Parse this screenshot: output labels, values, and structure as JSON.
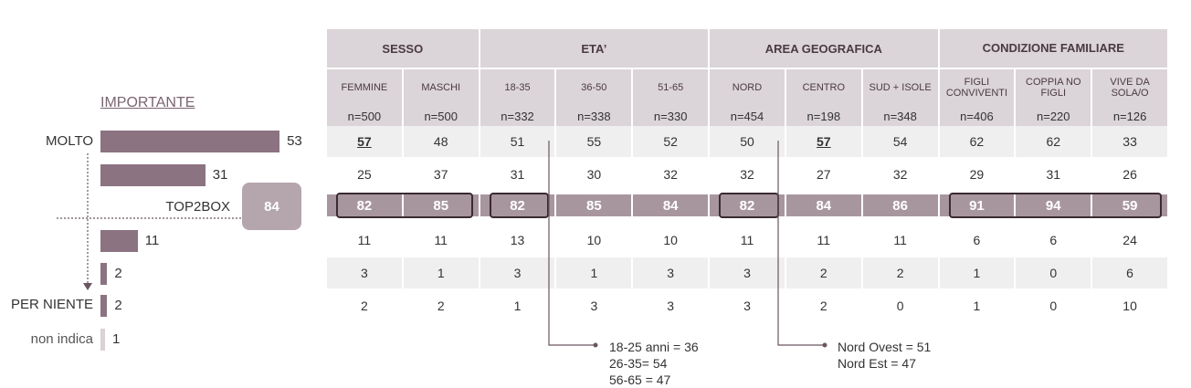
{
  "left_chart": {
    "title": "IMPORTANTE",
    "rows": [
      {
        "label": "MOLTO",
        "value": "53",
        "pct": 53
      },
      {
        "label": "",
        "value": "31",
        "pct": 31
      },
      {
        "label": "",
        "value": "11",
        "pct": 11
      },
      {
        "label": "",
        "value": "2",
        "pct": 2
      },
      {
        "label": "PER NIENTE",
        "value": "2",
        "pct": 2
      },
      {
        "label": "non indica",
        "value": "1",
        "pct": 1
      }
    ],
    "top2box_label": "TOP2BOX",
    "top2box_value": "84"
  },
  "table": {
    "groups": [
      "SESSO",
      "ETA’",
      "AREA GEOGRAFICA",
      "CONDIZIONE FAMILIARE"
    ],
    "columns": [
      "FEMMINE",
      "MASCHI",
      "18-35",
      "36-50",
      "51-65",
      "NORD",
      "CENTRO",
      "SUD + ISOLE",
      "FIGLI CONVIVENTI",
      "COPPIA NO FIGLI",
      "VIVE DA SOLA/O"
    ],
    "n": [
      "n=500",
      "n=500",
      "n=332",
      "n=338",
      "n=330",
      "n=454",
      "n=198",
      "n=348",
      "n=406",
      "n=220",
      "n=126"
    ],
    "rows": [
      [
        "57",
        "48",
        "51",
        "55",
        "52",
        "50",
        "57",
        "54",
        "62",
        "62",
        "33"
      ],
      [
        "25",
        "37",
        "31",
        "30",
        "32",
        "32",
        "27",
        "32",
        "29",
        "31",
        "26"
      ],
      [
        "82",
        "85",
        "82",
        "85",
        "84",
        "82",
        "84",
        "86",
        "91",
        "94",
        "59"
      ],
      [
        "11",
        "11",
        "13",
        "10",
        "10",
        "11",
        "11",
        "11",
        "6",
        "6",
        "24"
      ],
      [
        "3",
        "1",
        "3",
        "1",
        "3",
        "3",
        "2",
        "2",
        "1",
        "0",
        "6"
      ],
      [
        "2",
        "2",
        "1",
        "3",
        "3",
        "3",
        "2",
        "0",
        "1",
        "0",
        "10"
      ]
    ]
  },
  "notes": {
    "age": [
      "18-25 anni = 36",
      "26-35= 54",
      "56-65 = 47"
    ],
    "area": [
      "Nord Ovest = 51",
      "Nord Est = 47"
    ]
  },
  "colors": {
    "bar": "#8c7381",
    "header": "#dbd4d8",
    "top2box_row": "#a8969f",
    "stripe": "#efefef"
  },
  "chart_data": {
    "type": "bar",
    "title": "IMPORTANTE",
    "categories": [
      "MOLTO",
      "",
      "",
      "",
      "PER NIENTE",
      "non indica"
    ],
    "values": [
      53,
      31,
      11,
      2,
      2,
      1
    ],
    "annotations": {
      "TOP2BOX": 84
    }
  }
}
